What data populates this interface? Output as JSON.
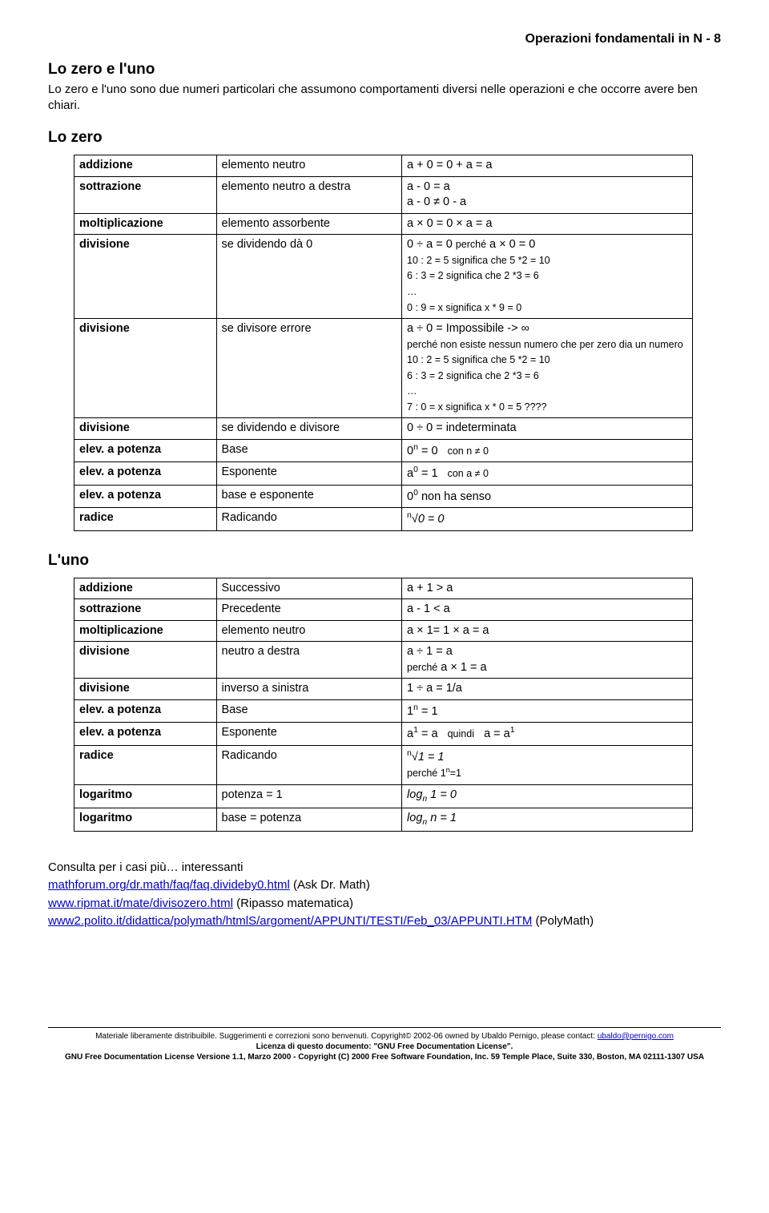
{
  "header": "Operazioni fondamentali in N - 8",
  "title1": "Lo zero e l'uno",
  "intro": "Lo zero e l'uno sono due numeri particolari che assumono comportamenti diversi nelle operazioni e che occorre avere ben chiari.",
  "title2": "Lo zero",
  "tableZero": {
    "rows": [
      {
        "c1": "addizione",
        "c2": "elemento neutro",
        "c3": "a + 0 = 0 + a = a"
      },
      {
        "c1": "sottrazione",
        "c2": "elemento neutro a destra",
        "c3": "a - 0 = a\na - 0 ≠ 0 - a"
      },
      {
        "c1": "moltiplicazione",
        "c2": "elemento assorbente",
        "c3": "a × 0 = 0 × a = a"
      },
      {
        "c1": "divisione",
        "c2": "se dividendo dà 0",
        "c3": "0 ÷ a = 0 <span class=\"small\">perché</span> a × 0 = 0\n<span class=\"small\">10 : 2 = 5 significa che 5 *2 = 10</span>\n<span class=\"small\">6 : 3 = 2 significa che 2 *3 = 6</span>\n<span class=\"small\">…</span>\n<span class=\"small\">0 : 9 = x significa x * 9 = 0</span>"
      },
      {
        "c1": "divisione",
        "c2": "se divisore errore",
        "c3": "a ÷ 0 = Impossibile -> ∞\n<span class=\"small\">perché non esiste nessun numero che per zero dia un numero</span>\n<span class=\"small\">10 : 2 = 5 significa che 5 *2 = 10</span>\n<span class=\"small\">6 : 3 = 2 significa che 2 *3 = 6</span>\n<span class=\"small\">…</span>\n<span class=\"small\">7 : 0 = x significa x * 0 = 5 ????</span>"
      },
      {
        "c1": "divisione",
        "c2": "se dividendo e divisore",
        "c3": "0 ÷ 0 = indeterminata"
      },
      {
        "c1": "elev. a potenza",
        "c2": "Base",
        "c3": "0<span class=\"sup\">n</span> = 0&nbsp;&nbsp;&nbsp;<span class=\"small\">con n ≠ 0</span>"
      },
      {
        "c1": "elev. a potenza",
        "c2": "Esponente",
        "c3": "a<span class=\"sup\">0</span> = 1&nbsp;&nbsp;&nbsp;<span class=\"small\">con a ≠ 0</span>"
      },
      {
        "c1": "elev. a potenza",
        "c2": "<span style=\"font-weight:normal\">base e esponente</span>",
        "c3": "0<span class=\"sup\">0</span> non ha senso"
      },
      {
        "c1": "radice",
        "c2": "<span style=\"font-weight:normal\">Radicando</span>",
        "c3": "<span class=\"sup\">n</span>√<i>0 = 0</i>"
      }
    ]
  },
  "title3": "L'uno",
  "tableUno": {
    "rows": [
      {
        "c1": "addizione",
        "c2": "Successivo",
        "c3": "a + 1 > a"
      },
      {
        "c1": "sottrazione",
        "c2": "Precedente",
        "c3": "a - 1 < a"
      },
      {
        "c1": "moltiplicazione",
        "c2": "elemento neutro",
        "c3": "a × 1= 1 × a = a"
      },
      {
        "c1": "divisione",
        "c2": "neutro a destra",
        "c3": "a ÷ 1 = a\n<span class=\"small\">perché</span> a × 1 = a"
      },
      {
        "c1": "divisione",
        "c2": "inverso a sinistra",
        "c3": "1 ÷ a = 1/a"
      },
      {
        "c1": "elev. a potenza",
        "c2": "Base",
        "c3": "1<span class=\"sup\">n</span> = 1"
      },
      {
        "c1": "elev. a potenza",
        "c2": "Esponente",
        "c3": "a<span class=\"sup\">1</span> = a&nbsp;&nbsp;&nbsp;<span class=\"small\">quindi</span>&nbsp;&nbsp;&nbsp;a = a<span class=\"sup\">1</span>"
      },
      {
        "c1": "radice",
        "c2": "<span style=\"font-weight:normal\">Radicando</span>",
        "c3": "<span class=\"sup\">n</span>√<i>1 = 1</i>\n<span class=\"small\">perché 1<span class=\"sup\">n</span>=1</span>"
      },
      {
        "c1": "logaritmo",
        "c2": "<span style=\"font-weight:normal\">potenza = 1</span>",
        "c3": "<i>log<span class=\"sub\">n</span> 1 = 0</i>"
      },
      {
        "c1": "logaritmo",
        "c2": "<span style=\"font-weight:normal\">base = potenza</span>",
        "c3": "<i>log<span class=\"sub\">n</span> n = 1</i>"
      }
    ]
  },
  "refs": {
    "line1": "Consulta per i casi più… interessanti",
    "link1_text": "mathforum.org/dr.math/faq/faq.divideby0.html",
    "link1_after": " (Ask Dr. Math)",
    "link2_text": "www.ripmat.it/mate/divisozero.html",
    "link2_after": " (Ripasso matematica)",
    "link3_text": "www2.polito.it/didattica/polymath/htmlS/argoment/APPUNTI/TESTI/Feb_03/APPUNTI.HTM",
    "link3_after": " (PolyMath)"
  },
  "footer": {
    "line1a": "Materiale liberamente distribuibile. Suggerimenti e correzioni sono benvenuti. Copyright© 2002-06 owned by Ubaldo Pernigo, please contact: ",
    "email": "ubaldo@pernigo.com",
    "line2": "Licenza di questo documento: \"GNU Free Documentation License\".",
    "line3": "GNU Free Documentation License Versione 1.1, Marzo 2000 - Copyright (C) 2000 Free Software Foundation, Inc. 59 Temple Place, Suite 330, Boston, MA 02111-1307 USA"
  }
}
